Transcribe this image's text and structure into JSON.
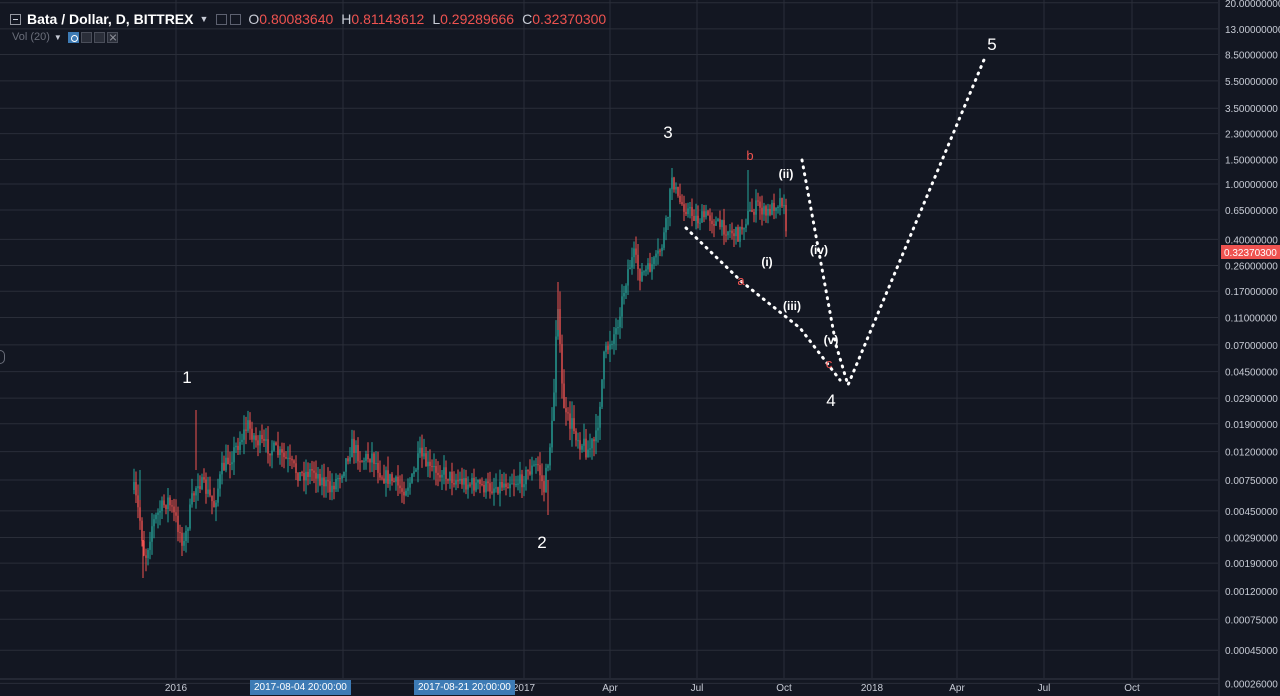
{
  "legend": {
    "symbol": "Bata / Dollar, D, BITTREX",
    "open_label": "O",
    "open": "0.80083640",
    "high_label": "H",
    "high": "0.81143612",
    "low_label": "L",
    "low": "0.29289666",
    "close_label": "C",
    "close": "0.32370300"
  },
  "volume": {
    "label": "Vol (20)"
  },
  "price_axis": {
    "ticks": [
      "20.00000000",
      "13.00000000",
      "8.50000000",
      "5.50000000",
      "3.50000000",
      "2.30000000",
      "1.50000000",
      "1.00000000",
      "0.65000000",
      "0.40000000",
      "0.26000000",
      "0.17000000",
      "0.11000000",
      "0.07000000",
      "0.04500000",
      "0.02900000",
      "0.01900000",
      "0.01200000",
      "0.00750000",
      "0.00450000",
      "0.00290000",
      "0.00190000",
      "0.00120000",
      "0.00075000",
      "0.00045000",
      "0.00026000"
    ],
    "current_price": "0.32370300"
  },
  "time_axis": {
    "labels": [
      "2016",
      "Jul",
      "2017",
      "Apr",
      "Jul",
      "Oct",
      "2018",
      "Apr",
      "Jul",
      "Oct"
    ],
    "crosshair_tags": [
      "2017-08-04 20:00:00",
      "2017-08-21 20:00:00"
    ]
  },
  "annotations": {
    "wave_1": "1",
    "wave_2": "2",
    "wave_3": "3",
    "wave_4": "4",
    "wave_5": "5",
    "sub_a": "a",
    "sub_b": "b",
    "sub_c": "c",
    "sub_i": "(i)",
    "sub_ii": "(ii)",
    "sub_iii": "(iii)",
    "sub_iv": "(iv)",
    "sub_v": "(v)"
  },
  "colors": {
    "background": "#131722",
    "up": "#26a69a",
    "down": "#ef5350",
    "grid": "#2a2e39",
    "price_tag": "#ef5350",
    "date_tag": "#3d7bb5"
  }
}
